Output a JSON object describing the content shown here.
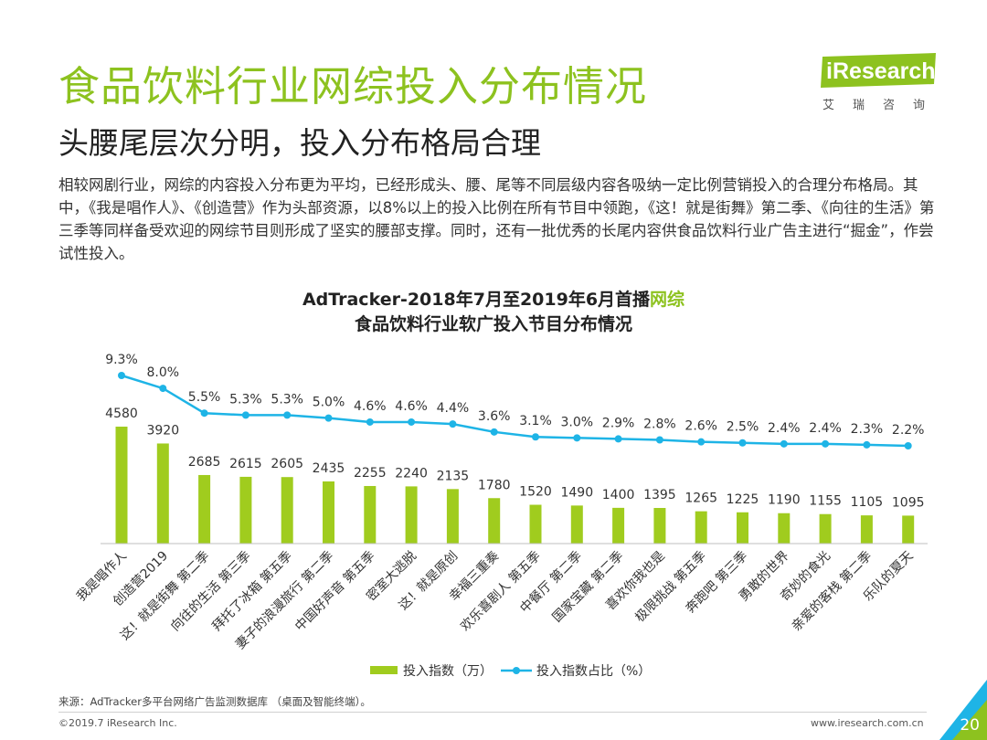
{
  "slide": {
    "title": "食品饮料行业网综投入分布情况",
    "subtitle": "头腰尾层次分明，投入分布格局合理",
    "body": "相较网剧行业，网综的内容投入分布更为平均，已经形成头、腰、尾等不同层级内容各吸纳一定比例营销投入的合理分布格局。其中，《我是唱作人》、《创造营》作为头部资源，以8%以上的投入比例在所有节目中领跑，《这！就是街舞》第二季、《向往的生活》第三季等同样备受欢迎的网综节目则形成了坚实的腰部支撑。同时，还有一批优秀的长尾内容供食品饮料行业广告主进行“掘金”，作尝试性投入。",
    "logo_en": "iResearch",
    "logo_cn": "艾瑞咨询",
    "source": "来源：AdTracker多平台网络广告监测数据库 （桌面及智能终端）。",
    "copyright": "©2019.7 iResearch Inc.",
    "website": "www.iresearch.com.cn",
    "page_number": "20"
  },
  "colors": {
    "accent": "#8dc21f",
    "bar": "#a0cc1e",
    "line": "#1eb4e6",
    "corner_green": "#8dc21f",
    "corner_blue": "#1eb4e6"
  },
  "chart_data": {
    "type": "bar",
    "title_part1": "AdTracker-2018年7月至2019年6月首播",
    "title_highlight": "网综",
    "title_line2": "食品饮料行业软广投入节目分布情况",
    "categories": [
      "我是唱作人",
      "创造营2019",
      "这！就是街舞 第二季",
      "向往的生活 第三季",
      "拜托了冰箱 第五季",
      "妻子的浪漫旅行 第二季",
      "中国好声音 第五季",
      "密室大逃脱",
      "这！就是原创",
      "幸福三重奏",
      "欢乐喜剧人 第五季",
      "中餐厅 第二季",
      "国家宝藏 第二季",
      "喜欢你我也是",
      "极限挑战 第五季",
      "奔跑吧 第三季",
      "勇敢的世界",
      "奇妙的食光",
      "亲爱的客栈 第二季",
      "乐队的夏天"
    ],
    "series": [
      {
        "name": "投入指数（万）",
        "type": "bar",
        "values": [
          4580,
          3920,
          2685,
          2615,
          2605,
          2435,
          2255,
          2240,
          2135,
          1780,
          1520,
          1490,
          1400,
          1395,
          1265,
          1225,
          1190,
          1155,
          1105,
          1095
        ]
      },
      {
        "name": "投入指数占比（%）",
        "type": "line",
        "values": [
          9.3,
          8.0,
          5.5,
          5.3,
          5.3,
          5.0,
          4.6,
          4.6,
          4.4,
          3.6,
          3.1,
          3.0,
          2.9,
          2.8,
          2.6,
          2.5,
          2.4,
          2.4,
          2.3,
          2.2
        ]
      }
    ],
    "bar_labels": [
      "4580",
      "3920",
      "2685",
      "2615",
      "2605",
      "2435",
      "2255",
      "2240",
      "2135",
      "1780",
      "1520",
      "1490",
      "1400",
      "1395",
      "1265",
      "1225",
      "1190",
      "1155",
      "1105",
      "1095"
    ],
    "line_labels": [
      "9.3%",
      "8.0%",
      "5.5%",
      "5.3%",
      "5.3%",
      "5.0%",
      "4.6%",
      "4.6%",
      "4.4%",
      "3.6%",
      "3.1%",
      "3.0%",
      "2.9%",
      "2.8%",
      "2.6%",
      "2.5%",
      "2.4%",
      "2.4%",
      "2.3%",
      "2.2%"
    ],
    "legend": {
      "position": "bottom-center",
      "items": [
        "投入指数（万）",
        "投入指数占比（%）"
      ]
    },
    "grid": false
  }
}
